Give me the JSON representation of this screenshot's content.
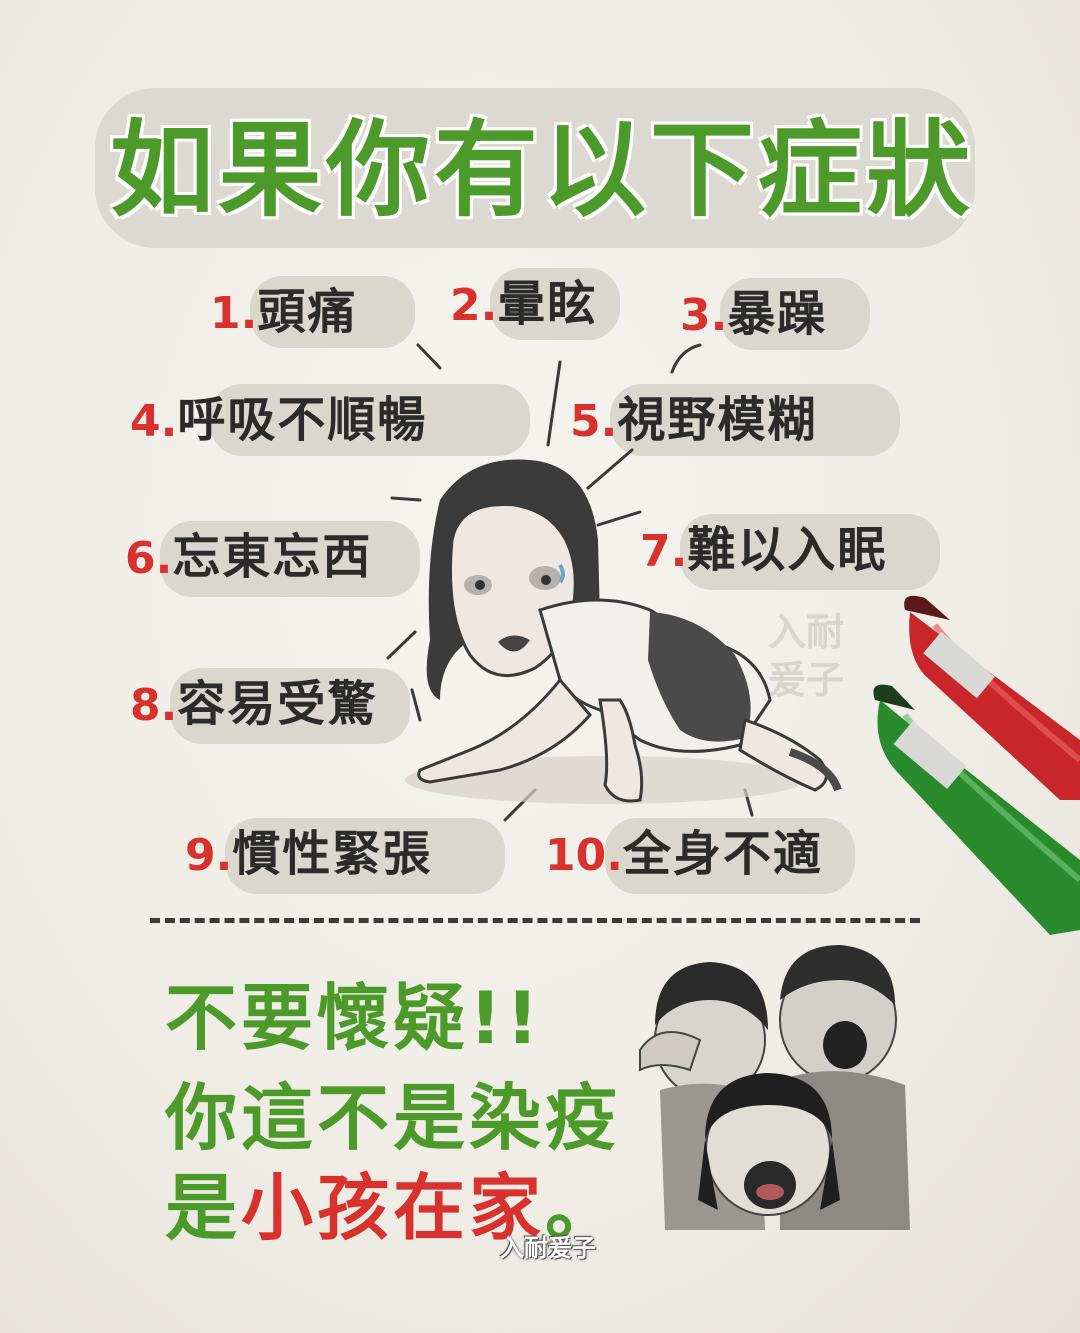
{
  "title": "如果你有以下症狀",
  "symptoms": [
    {
      "num": "1.",
      "text": "頭痛"
    },
    {
      "num": "2.",
      "text": "暈眩"
    },
    {
      "num": "3.",
      "text": "暴躁"
    },
    {
      "num": "4.",
      "text": "呼吸不順暢"
    },
    {
      "num": "5.",
      "text": "視野模糊"
    },
    {
      "num": "6.",
      "text": "忘東忘西"
    },
    {
      "num": "7.",
      "text": "難以入眠"
    },
    {
      "num": "8.",
      "text": "容易受驚"
    },
    {
      "num": "9.",
      "text": "慣性緊張"
    },
    {
      "num": "10.",
      "text": "全身不適"
    }
  ],
  "message": {
    "line1": "不要懷疑!!",
    "line2": "你這不是染疫",
    "line3_start": "是",
    "line3_red": "小孩在家",
    "line3_end": "。"
  },
  "credit": "入耐爰子",
  "watermark": "入耐爰子",
  "colors": {
    "title_green": "#4c9a2a",
    "number_red": "#d9322e",
    "marker_red": "#c8262a",
    "marker_green": "#2a8a2e",
    "paper": "#f2efe9"
  }
}
